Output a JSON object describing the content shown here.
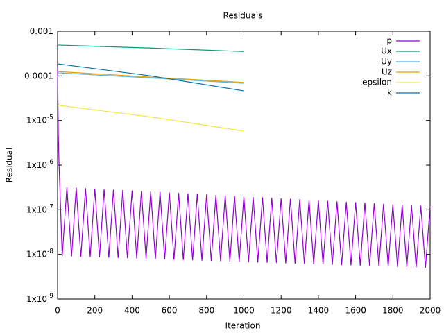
{
  "chart_data": {
    "type": "line",
    "title": "Residuals",
    "x_label": "Iteration",
    "y_label": "Residual",
    "log_y": true,
    "legend": "top-right",
    "xlim": [
      0,
      2000
    ],
    "xticks": [
      0,
      200,
      400,
      600,
      800,
      1000,
      1200,
      1400,
      1600,
      1800,
      2000
    ],
    "ylim": [
      1e-09,
      0.001
    ],
    "yticks": [
      {
        "value": 1e-09,
        "label": "1x10",
        "exponent": "-9"
      },
      {
        "value": 1e-08,
        "label": "1x10",
        "exponent": "-8"
      },
      {
        "value": 1e-07,
        "label": "1x10",
        "exponent": "-7"
      },
      {
        "value": 1e-06,
        "label": "1x10",
        "exponent": "-6"
      },
      {
        "value": 1e-05,
        "label": "1x10",
        "exponent": "-5"
      },
      {
        "value": 0.0001,
        "label": "0.0001"
      },
      {
        "value": 0.001,
        "label": "0.001"
      }
    ],
    "series": [
      {
        "name": "p",
        "color": "#9400d3",
        "x": [
          0,
          4,
          8,
          12,
          25,
          50,
          75,
          100,
          125,
          150,
          175,
          200,
          225,
          250,
          275,
          300,
          325,
          350,
          375,
          400,
          425,
          450,
          475,
          500,
          525,
          550,
          575,
          600,
          625,
          650,
          675,
          700,
          725,
          750,
          775,
          800,
          825,
          850,
          875,
          900,
          925,
          950,
          975,
          1000,
          1025,
          1050,
          1075,
          1100,
          1125,
          1150,
          1175,
          1200,
          1225,
          1250,
          1275,
          1300,
          1325,
          1350,
          1375,
          1400,
          1425,
          1450,
          1475,
          1500,
          1525,
          1550,
          1575,
          1600,
          1625,
          1650,
          1675,
          1700,
          1725,
          1750,
          1775,
          1800,
          1825,
          1850,
          1875,
          1900,
          1925,
          1950,
          1975,
          2000
        ],
        "values": [
          0.00015,
          5e-06,
          1e-06,
          3.5e-07,
          9.1e-09,
          3.2e-07,
          9e-09,
          3.12e-07,
          8.85e-09,
          3.04e-07,
          8.7e-09,
          2.97e-07,
          8.6e-09,
          2.89e-07,
          8.45e-09,
          2.82e-07,
          8.3e-09,
          2.75e-07,
          8.2e-09,
          2.68e-07,
          8.1e-09,
          2.62e-07,
          7.95e-09,
          2.55e-07,
          7.85e-09,
          2.49e-07,
          7.7e-09,
          2.43e-07,
          7.6e-09,
          2.37e-07,
          7.5e-09,
          2.31e-07,
          7.35e-09,
          2.25e-07,
          7.25e-09,
          2.19e-07,
          7.15e-09,
          2.14e-07,
          7.05e-09,
          2.09e-07,
          6.9e-09,
          2.03e-07,
          6.8e-09,
          1.98e-07,
          6.7e-09,
          1.93e-07,
          6.6e-09,
          1.89e-07,
          6.5e-09,
          1.84e-07,
          6.4e-09,
          1.79e-07,
          6.3e-09,
          1.75e-07,
          6.2e-09,
          1.71e-07,
          6.1e-09,
          1.66e-07,
          6e-09,
          1.62e-07,
          5.95e-09,
          1.58e-07,
          5.85e-09,
          1.54e-07,
          5.75e-09,
          1.5e-07,
          5.65e-09,
          1.47e-07,
          5.6e-09,
          1.43e-07,
          5.5e-09,
          1.4e-07,
          5.4e-09,
          1.36e-07,
          5.35e-09,
          1.33e-07,
          5.25e-09,
          1.29e-07,
          5.15e-09,
          1.26e-07,
          5.1e-09,
          1.23e-07,
          5e-09,
          1.2e-07
        ]
      },
      {
        "name": "Ux",
        "color": "#009e73",
        "x": [
          0,
          500,
          1000
        ],
        "values": [
          0.00049,
          0.00042,
          0.00035
        ]
      },
      {
        "name": "Uy",
        "color": "#56b4e9",
        "x": [
          0,
          500,
          1000
        ],
        "values": [
          0.000117,
          9e-05,
          6.8e-05
        ]
      },
      {
        "name": "Uz",
        "color": "#e69f00",
        "x": [
          0,
          500,
          1000
        ],
        "values": [
          0.000125,
          9.4e-05,
          7.1e-05
        ]
      },
      {
        "name": "epsilon",
        "color": "#f0e442",
        "x": [
          0,
          500,
          1000
        ],
        "values": [
          2.2e-05,
          1.2e-05,
          5.8e-06
        ]
      },
      {
        "name": "k",
        "color": "#0072b2",
        "x": [
          0,
          500,
          1000
        ],
        "values": [
          0.000186,
          0.0001,
          4.6e-05
        ]
      }
    ]
  }
}
